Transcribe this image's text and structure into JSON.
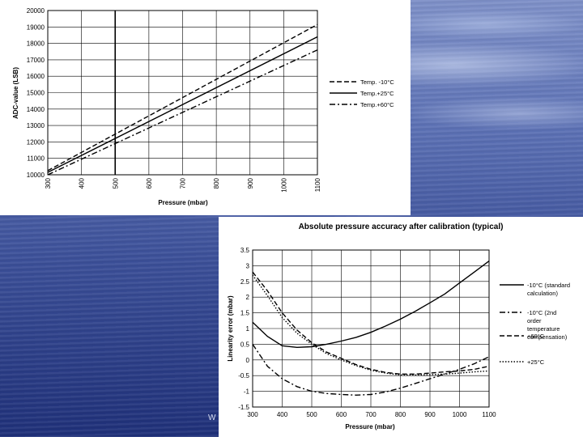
{
  "footer_fragment": "W",
  "chart_data": [
    {
      "type": "line",
      "title": "",
      "xlabel": "Pressure (mbar)",
      "ylabel": "ADC-value (LSB)",
      "xlim": [
        300,
        1100
      ],
      "ylim": [
        10000,
        20000
      ],
      "x_ticks": [
        "300",
        "400",
        "500",
        "600",
        "700",
        "800",
        "900",
        "1000",
        "1100"
      ],
      "y_ticks": [
        "10000",
        "11000",
        "12000",
        "13000",
        "14000",
        "15000",
        "16000",
        "17000",
        "18000",
        "19000",
        "20000"
      ],
      "grid": true,
      "legend_position": "right",
      "x": [
        300,
        1100
      ],
      "series": [
        {
          "name": "Temp. -10°C",
          "style": "dashed",
          "values": [
            10250,
            19150
          ]
        },
        {
          "name": "Temp.+25°C",
          "style": "solid",
          "values": [
            10150,
            18400
          ]
        },
        {
          "name": "Temp.+60°C",
          "style": "dashdot",
          "values": [
            10000,
            17600
          ]
        }
      ]
    },
    {
      "type": "line",
      "title": "Absolute pressure accuracy after calibration (typical)",
      "xlabel": "Pressure (mbar)",
      "ylabel": "Linearity error (mbar)",
      "xlim": [
        300,
        1100
      ],
      "ylim": [
        -1.5,
        3.5
      ],
      "x_ticks": [
        "300",
        "400",
        "500",
        "600",
        "700",
        "800",
        "900",
        "1000",
        "1100"
      ],
      "y_ticks": [
        "3.5",
        "3",
        "2.5",
        "2",
        "1.5",
        "1",
        "0.5",
        "0",
        "-0.5",
        "-1",
        "-1.5"
      ],
      "grid": true,
      "legend_position": "right",
      "x": [
        300,
        350,
        400,
        450,
        500,
        550,
        600,
        650,
        700,
        750,
        800,
        850,
        900,
        950,
        1000,
        1050,
        1100
      ],
      "series": [
        {
          "name": "-10°C (standard calculation)",
          "style": "solid",
          "values": [
            1.2,
            0.75,
            0.45,
            0.4,
            0.42,
            0.5,
            0.6,
            0.72,
            0.88,
            1.08,
            1.3,
            1.55,
            1.82,
            2.1,
            2.45,
            2.8,
            3.15
          ]
        },
        {
          "name": "-10°C (2nd order temperature compensation)",
          "style": "dashdot",
          "values": [
            0.5,
            -0.2,
            -0.6,
            -0.85,
            -1.0,
            -1.07,
            -1.1,
            -1.12,
            -1.1,
            -1.02,
            -0.9,
            -0.75,
            -0.6,
            -0.45,
            -0.3,
            -0.12,
            0.1
          ]
        },
        {
          "name": "+60°C",
          "style": "dashed",
          "values": [
            2.8,
            2.2,
            1.5,
            0.95,
            0.55,
            0.25,
            0.05,
            -0.15,
            -0.3,
            -0.4,
            -0.45,
            -0.45,
            -0.42,
            -0.38,
            -0.35,
            -0.3,
            -0.2
          ]
        },
        {
          "name": "+25°C",
          "style": "dotted",
          "values": [
            2.7,
            2.05,
            1.35,
            0.85,
            0.5,
            0.2,
            0.0,
            -0.18,
            -0.33,
            -0.42,
            -0.48,
            -0.48,
            -0.47,
            -0.45,
            -0.42,
            -0.38,
            -0.35
          ]
        }
      ]
    }
  ]
}
